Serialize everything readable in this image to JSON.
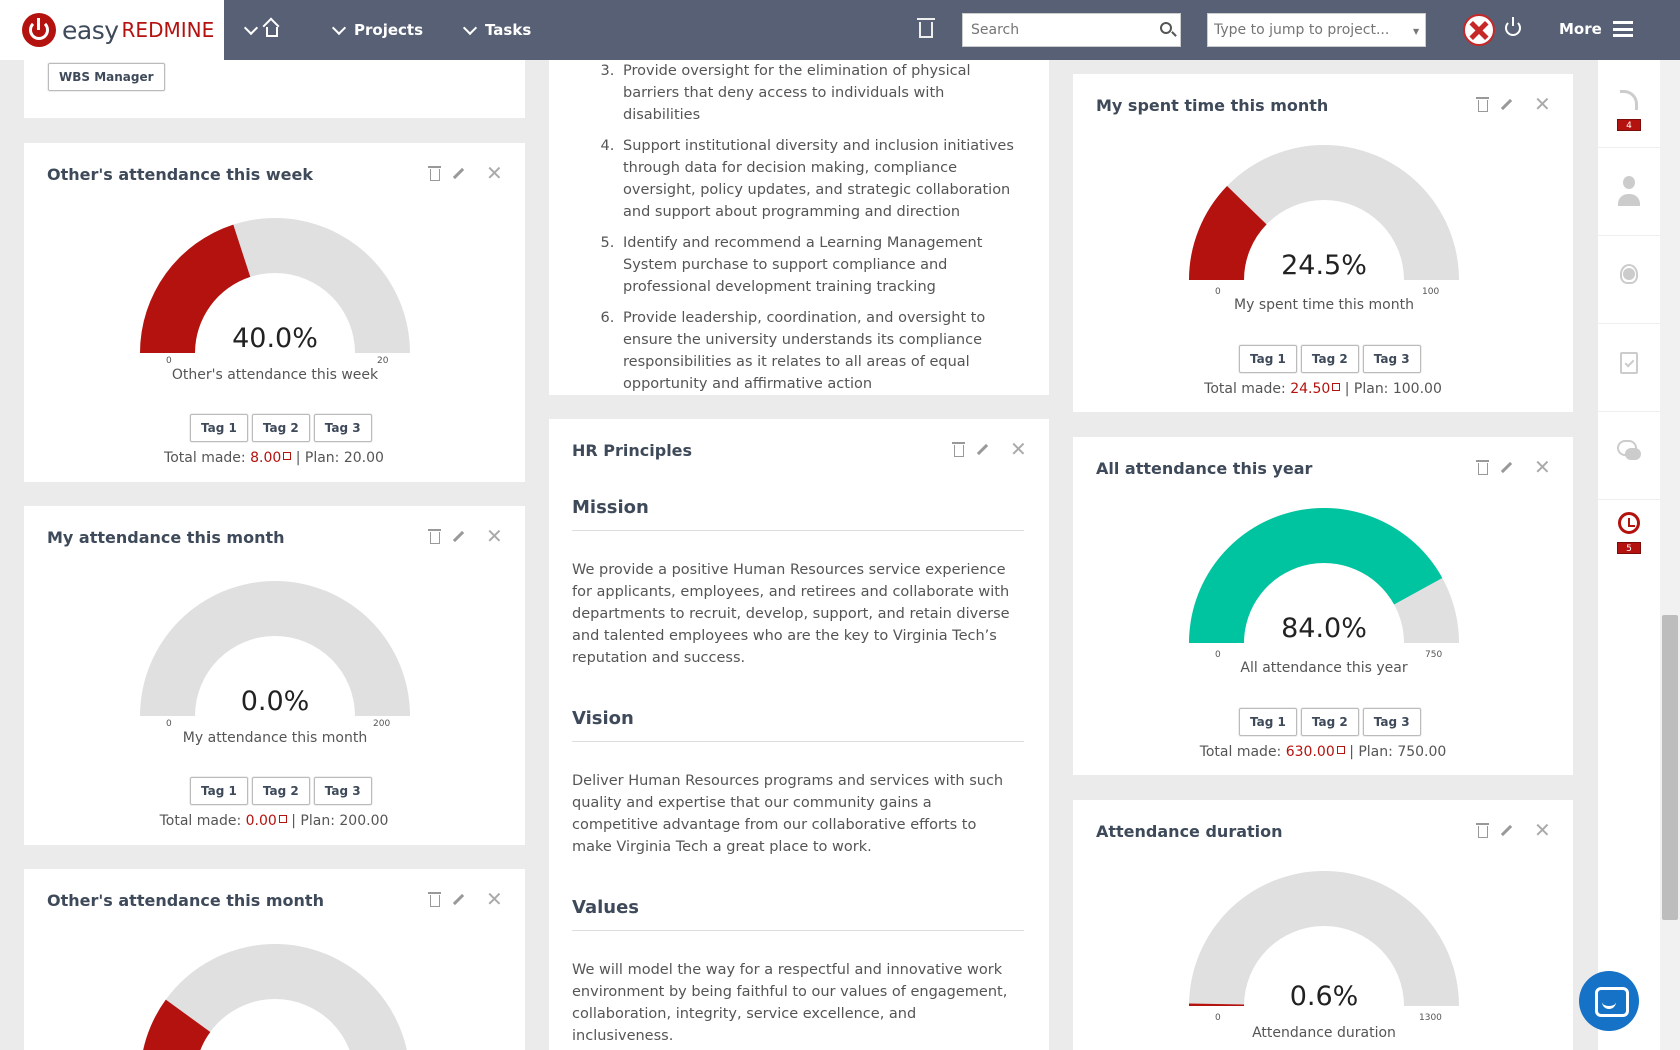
{
  "brand": {
    "word1": "easy",
    "word2": "REDMINE"
  },
  "nav": {
    "projects": "Projects",
    "tasks": "Tasks",
    "more": "More"
  },
  "search": {
    "placeholder": "Search"
  },
  "jump": {
    "placeholder": "Type to jump to project..."
  },
  "top_card": {
    "tag": "WBS Manager"
  },
  "list_items": [
    "Provide oversight for the elimination of physical barriers that deny access to individuals with disabilities",
    "Support institutional diversity and inclusion initiatives through data for decision making, compliance oversight, policy updates, and strategic collaboration and support about programming and direction",
    "Identify and recommend a Learning Management System purchase to support compliance and professional development training tracking",
    "Provide leadership, coordination, and oversight to ensure the university understands its compliance responsibilities as it relates to all areas of equal opportunity and affirmative action"
  ],
  "hr": {
    "title": "HR Principles",
    "mission_title": "Mission",
    "mission": "We provide a positive Human Resources service experience for applicants, employees, and retirees and collaborate with departments to recruit, develop, support, and retain diverse and talented employees who are the key to Virginia Tech’s reputation and success.",
    "vision_title": "Vision",
    "vision": "Deliver Human Resources programs and services with such quality and expertise that our community gains a competitive advantage from our collaborative efforts to make Virginia Tech a great place to work.",
    "values_title": "Values",
    "values": "We will model the way for a respectful and innovative work environment by being faithful to our values of engagement, collaboration, integrity, service excellence, and inclusiveness."
  },
  "tags": [
    "Tag 1",
    "Tag 2",
    "Tag 3"
  ],
  "total_label": "Total made:",
  "plan_label": "| Plan:",
  "gauges": {
    "others_week": {
      "title": "Other's attendance this week",
      "value": "40.0%",
      "fraction": 0.4,
      "min": "0",
      "max": "20",
      "label": "Other's attendance this week",
      "total": "8.00",
      "plan": "20.00",
      "color": "#b4120f"
    },
    "my_month": {
      "title": "My attendance this month",
      "value": "0.0%",
      "fraction": 0.0,
      "min": "0",
      "max": "200",
      "label": "My attendance this month",
      "total": "0.00",
      "plan": "200.00",
      "color": "#b4120f"
    },
    "others_month": {
      "title": "Other's attendance this month",
      "fraction": 0.2,
      "color": "#b4120f"
    },
    "spent_time": {
      "title": "My spent time this month",
      "value": "24.5%",
      "fraction": 0.245,
      "min": "0",
      "max": "100",
      "label": "My spent time this month",
      "total": "24.50",
      "plan": "100.00",
      "color": "#b4120f"
    },
    "all_year": {
      "title": "All attendance this year",
      "value": "84.0%",
      "fraction": 0.84,
      "min": "0",
      "max": "750",
      "label": "All attendance this year",
      "total": "630.00",
      "plan": "750.00",
      "color": "#00c4a0"
    },
    "duration": {
      "title": "Attendance duration",
      "value": "0.6%",
      "fraction": 0.006,
      "min": "0",
      "max": "1300",
      "label": "Attendance duration",
      "color": "#b4120f"
    }
  },
  "sidebar": {
    "badge1": "4",
    "badge2": "5"
  },
  "colors": {
    "accent": "#b4120f",
    "topbar": "#576074",
    "teal": "#00c4a0",
    "gauge_bg": "#e0e0e0"
  }
}
